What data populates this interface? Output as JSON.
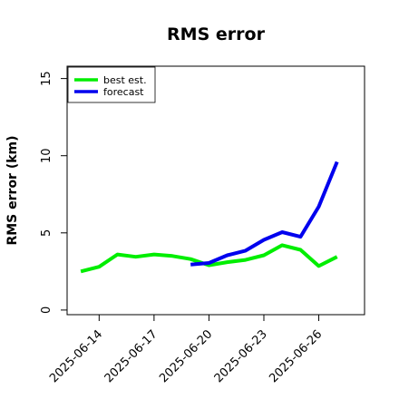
{
  "chart_data": {
    "type": "line",
    "title": "RMS error",
    "xlabel": "",
    "ylabel": "RMS error (km)",
    "ylim": [
      -0.3,
      15.8
    ],
    "xlim": [
      "2025-06-12T06:00",
      "2025-06-28T12:00"
    ],
    "yticks": [
      0,
      5,
      10,
      15
    ],
    "xticks": [
      "2025-06-14",
      "2025-06-17",
      "2025-06-20",
      "2025-06-23",
      "2025-06-26"
    ],
    "grid": false,
    "legend_position": "top-left",
    "series": [
      {
        "name": "best est.",
        "color": "#00ee00",
        "points": [
          [
            "2025-06-13",
            2.5
          ],
          [
            "2025-06-14",
            2.8
          ],
          [
            "2025-06-15",
            3.6
          ],
          [
            "2025-06-16",
            3.45
          ],
          [
            "2025-06-17",
            3.6
          ],
          [
            "2025-06-18",
            3.5
          ],
          [
            "2025-06-19",
            3.3
          ],
          [
            "2025-06-20",
            2.9
          ],
          [
            "2025-06-21",
            3.1
          ],
          [
            "2025-06-22",
            3.25
          ],
          [
            "2025-06-23",
            3.55
          ],
          [
            "2025-06-24",
            4.2
          ],
          [
            "2025-06-25",
            3.9
          ],
          [
            "2025-06-26",
            2.85
          ],
          [
            "2025-06-27",
            3.45
          ]
        ]
      },
      {
        "name": "forecast",
        "color": "#0000ee",
        "points": [
          [
            "2025-06-19",
            2.95
          ],
          [
            "2025-06-20",
            3.05
          ],
          [
            "2025-06-21",
            3.55
          ],
          [
            "2025-06-22",
            3.85
          ],
          [
            "2025-06-23",
            4.55
          ],
          [
            "2025-06-24",
            5.05
          ],
          [
            "2025-06-25",
            4.75
          ],
          [
            "2025-06-26",
            6.7
          ],
          [
            "2025-06-27",
            9.6
          ]
        ]
      }
    ]
  }
}
